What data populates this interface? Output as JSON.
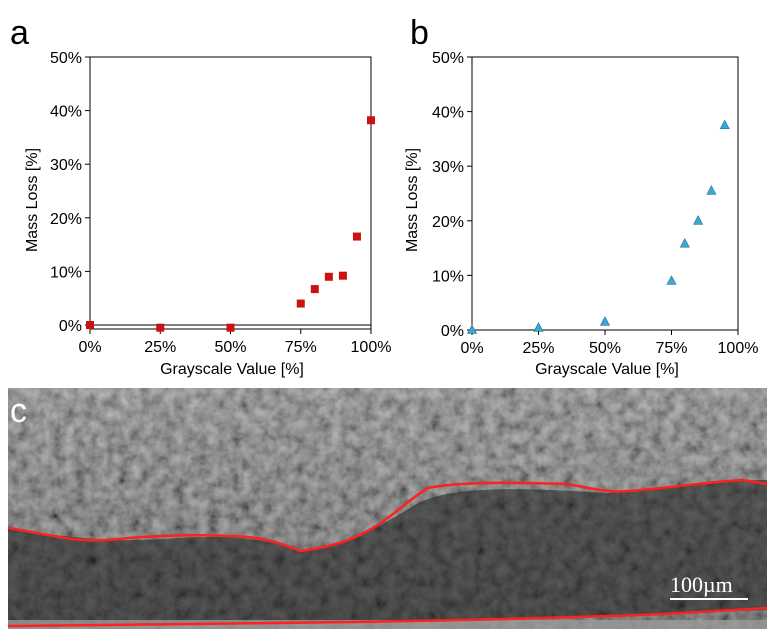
{
  "panels": {
    "a": "a",
    "b": "b",
    "c": "c"
  },
  "scale_bar": "100µm",
  "colors": {
    "series_a": "#cc1111",
    "series_b": "#3fa7d6",
    "boundary_line": "#ff2020"
  },
  "chart_data": [
    {
      "type": "scatter",
      "panel": "a",
      "xlabel": "Grayscale Value [%]",
      "ylabel": "Mass Loss [%]",
      "xlim": [
        0,
        100
      ],
      "ylim": [
        0,
        50
      ],
      "x_ticks": [
        "0%",
        "25%",
        "50%",
        "75%",
        "100%"
      ],
      "y_ticks": [
        "0%",
        "10%",
        "20%",
        "30%",
        "40%",
        "50%"
      ],
      "marker": "square",
      "grid": false,
      "series": [
        {
          "x": [
            0,
            25,
            50,
            75,
            80,
            85,
            90,
            95,
            100
          ],
          "y": [
            0,
            -0.5,
            -0.5,
            4,
            6.7,
            9,
            9.2,
            16.5,
            38.2
          ]
        }
      ]
    },
    {
      "type": "scatter",
      "panel": "b",
      "xlabel": "Grayscale Value [%]",
      "ylabel": "Mass Loss [%]",
      "xlim": [
        0,
        100
      ],
      "ylim": [
        0,
        50
      ],
      "x_ticks": [
        "0%",
        "25%",
        "50%",
        "75%",
        "100%"
      ],
      "y_ticks": [
        "0%",
        "10%",
        "20%",
        "30%",
        "40%",
        "50%"
      ],
      "marker": "triangle",
      "grid": false,
      "series": [
        {
          "x": [
            0,
            25,
            50,
            75,
            80,
            85,
            90,
            95
          ],
          "y": [
            0,
            0.4,
            1.5,
            9,
            15.8,
            20,
            25.5,
            37.5
          ]
        }
      ]
    }
  ]
}
